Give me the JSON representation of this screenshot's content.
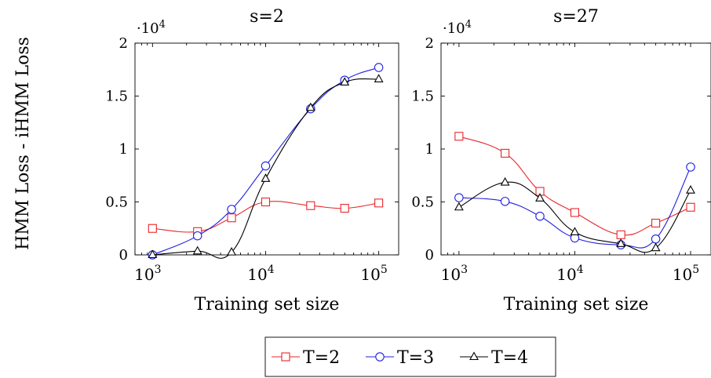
{
  "figure": {
    "ylabel": "HMM Loss - iHMM Loss"
  },
  "legend": {
    "placement": "bottom-center",
    "entries": [
      {
        "label": "T=2",
        "color": "#e8262a",
        "marker": "square"
      },
      {
        "label": "T=3",
        "color": "#1f1fe0",
        "marker": "circle"
      },
      {
        "label": "T=4",
        "color": "#000000",
        "marker": "triangle"
      }
    ]
  },
  "chart_data": [
    {
      "type": "line",
      "title": "s=2",
      "xlabel": "Training set size",
      "ylabel": "HMM Loss - iHMM Loss",
      "xscale": "log",
      "xlim": [
        700,
        150000
      ],
      "ylim": [
        0,
        20000
      ],
      "y_multiplier": "·10",
      "y_multiplier_exp": "4",
      "yticks": [
        0,
        5000,
        10000,
        15000,
        20000
      ],
      "ytick_labels": [
        "0",
        "0.5",
        "1",
        "1.5",
        "2"
      ],
      "xticks": [
        1000,
        10000,
        100000
      ],
      "xtick_bases": [
        "10",
        "10",
        "10"
      ],
      "xtick_exps": [
        "3",
        "4",
        "5"
      ],
      "x": [
        1000,
        2500,
        5000,
        10000,
        25000,
        50000,
        100000
      ],
      "series": [
        {
          "name": "T=2",
          "values": [
            2500,
            2200,
            3500,
            5000,
            4650,
            4400,
            4900
          ]
        },
        {
          "name": "T=3",
          "values": [
            0,
            1800,
            4300,
            8400,
            13800,
            16500,
            17700
          ]
        },
        {
          "name": "T=4",
          "values": [
            0,
            350,
            250,
            7200,
            13900,
            16300,
            16600
          ]
        }
      ]
    },
    {
      "type": "line",
      "title": "s=27",
      "xlabel": "Training set size",
      "xscale": "log",
      "xlim": [
        700,
        150000
      ],
      "ylim": [
        0,
        20000
      ],
      "y_multiplier": "·10",
      "y_multiplier_exp": "4",
      "yticks": [
        0,
        5000,
        10000,
        15000,
        20000
      ],
      "ytick_labels": [
        "0",
        "0.5",
        "1",
        "1.5",
        "2"
      ],
      "xticks": [
        1000,
        10000,
        100000
      ],
      "xtick_bases": [
        "10",
        "10",
        "10"
      ],
      "xtick_exps": [
        "3",
        "4",
        "5"
      ],
      "x": [
        1000,
        2500,
        5000,
        10000,
        25000,
        50000,
        100000
      ],
      "series": [
        {
          "name": "T=2",
          "values": [
            11200,
            9600,
            6000,
            4000,
            1900,
            3000,
            4500
          ]
        },
        {
          "name": "T=3",
          "values": [
            5400,
            5050,
            3650,
            1600,
            950,
            1500,
            8300
          ]
        },
        {
          "name": "T=4",
          "values": [
            4500,
            6850,
            5350,
            2150,
            1050,
            650,
            6100
          ]
        }
      ]
    }
  ]
}
